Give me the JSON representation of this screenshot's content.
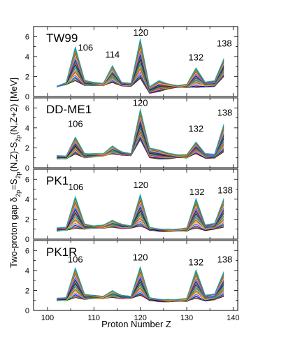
{
  "chart_data": {
    "type": "line",
    "xlabel": "Proton Number Z",
    "ylabel": "Two-proton gap δ_2p=S_2p(N,Z)-S_2p(N,Z+2) [MeV]",
    "ylabel_parts": [
      "Two-proton gap δ",
      "2p",
      "=S",
      "2p",
      "(N,Z)-S",
      "2p",
      "(N,Z+2) [MeV]"
    ],
    "xlim": [
      97,
      141
    ],
    "ylim": [
      0,
      7
    ],
    "xticks": [
      100,
      110,
      120,
      130,
      140
    ],
    "xtick_labels": [
      "100",
      "110",
      "120",
      "130",
      "140"
    ],
    "yticks": [
      0,
      2,
      4,
      6
    ],
    "ytick_labels": [
      "0",
      "2",
      "4",
      "6"
    ],
    "x": [
      102,
      104,
      106,
      108,
      110,
      112,
      114,
      116,
      118,
      120,
      122,
      124,
      126,
      128,
      130,
      132,
      134,
      136,
      138
    ],
    "series_colors": [
      "#000000",
      "#e41a1c",
      "#008000",
      "#0000ff",
      "#00ced1",
      "#ff00ff",
      "#ffd700",
      "#808080",
      "#8b4513",
      "#ff8c00",
      "#228b22",
      "#4169e1",
      "#20b2aa"
    ],
    "panels": [
      {
        "label": "TW99",
        "annotations": [
          {
            "text": "106",
            "x": 108.2,
            "y": 4.6
          },
          {
            "text": "114",
            "x": 114.0,
            "y": 3.9
          },
          {
            "text": "120",
            "x": 120.1,
            "y": 6.1
          },
          {
            "text": "132",
            "x": 132.0,
            "y": 3.6
          },
          {
            "text": "138",
            "x": 138.1,
            "y": 5.0
          }
        ],
        "peak_range": [
          [
            1.0,
            1.0
          ],
          [
            1.2,
            1.4
          ],
          [
            1.6,
            5.0
          ],
          [
            1.1,
            1.6
          ],
          [
            1.1,
            1.4
          ],
          [
            1.1,
            1.3
          ],
          [
            1.4,
            3.1
          ],
          [
            1.1,
            1.4
          ],
          [
            1.0,
            1.3
          ],
          [
            1.8,
            5.8
          ],
          [
            0.3,
            1.0
          ],
          [
            0.5,
            1.6
          ],
          [
            0.8,
            1.3
          ],
          [
            0.9,
            1.1
          ],
          [
            0.9,
            1.2
          ],
          [
            0.9,
            2.9
          ],
          [
            1.0,
            1.4
          ],
          [
            1.0,
            1.6
          ],
          [
            2.0,
            3.8
          ]
        ]
      },
      {
        "label": "DD-ME1",
        "annotations": [
          {
            "text": "106",
            "x": 106.0,
            "y": 4.1
          },
          {
            "text": "120",
            "x": 120.0,
            "y": 6.2
          },
          {
            "text": "132",
            "x": 132.0,
            "y": 3.6
          },
          {
            "text": "138",
            "x": 138.2,
            "y": 5.2
          }
        ],
        "peak_range": [
          [
            0.9,
            1.2
          ],
          [
            0.9,
            1.2
          ],
          [
            1.4,
            3.1
          ],
          [
            1.0,
            1.4
          ],
          [
            1.1,
            1.4
          ],
          [
            1.2,
            1.4
          ],
          [
            1.4,
            2.2
          ],
          [
            1.3,
            1.6
          ],
          [
            1.2,
            1.4
          ],
          [
            2.8,
            5.9
          ],
          [
            1.0,
            2.0
          ],
          [
            0.9,
            1.8
          ],
          [
            0.9,
            1.5
          ],
          [
            1.0,
            1.3
          ],
          [
            1.0,
            1.3
          ],
          [
            1.4,
            2.6
          ],
          [
            1.0,
            1.4
          ],
          [
            1.0,
            1.4
          ],
          [
            1.6,
            4.4
          ]
        ]
      },
      {
        "label": "PK1",
        "annotations": [
          {
            "text": "106",
            "x": 106.1,
            "y": 4.9
          },
          {
            "text": "120",
            "x": 120.1,
            "y": 5.1
          },
          {
            "text": "132",
            "x": 132.2,
            "y": 4.4
          },
          {
            "text": "138",
            "x": 138.3,
            "y": 4.6
          }
        ],
        "peak_range": [
          [
            0.8,
            1.1
          ],
          [
            0.9,
            1.2
          ],
          [
            1.1,
            4.3
          ],
          [
            1.0,
            1.5
          ],
          [
            1.1,
            1.3
          ],
          [
            1.1,
            1.4
          ],
          [
            1.2,
            1.9
          ],
          [
            1.1,
            1.5
          ],
          [
            1.1,
            1.3
          ],
          [
            1.3,
            4.5
          ],
          [
            0.9,
            1.2
          ],
          [
            0.8,
            1.0
          ],
          [
            0.8,
            1.0
          ],
          [
            0.8,
            1.0
          ],
          [
            0.8,
            1.1
          ],
          [
            1.1,
            4.1
          ],
          [
            0.9,
            1.4
          ],
          [
            1.0,
            1.6
          ],
          [
            1.2,
            4.1
          ]
        ]
      },
      {
        "label": "PK1R",
        "annotations": [
          {
            "text": "106",
            "x": 106.0,
            "y": 4.8
          },
          {
            "text": "120",
            "x": 120.0,
            "y": 5.0
          },
          {
            "text": "132",
            "x": 132.0,
            "y": 4.5
          },
          {
            "text": "138",
            "x": 138.2,
            "y": 4.8
          }
        ],
        "peak_range": [
          [
            1.0,
            1.2
          ],
          [
            1.0,
            1.3
          ],
          [
            1.3,
            4.3
          ],
          [
            1.1,
            1.6
          ],
          [
            1.2,
            1.5
          ],
          [
            1.2,
            1.4
          ],
          [
            1.3,
            2.0
          ],
          [
            1.2,
            1.5
          ],
          [
            1.2,
            1.4
          ],
          [
            1.5,
            4.4
          ],
          [
            1.0,
            1.3
          ],
          [
            0.9,
            1.1
          ],
          [
            0.9,
            1.1
          ],
          [
            0.9,
            1.1
          ],
          [
            0.9,
            1.2
          ],
          [
            1.2,
            4.1
          ],
          [
            1.0,
            1.5
          ],
          [
            1.1,
            1.7
          ],
          [
            1.4,
            3.9
          ]
        ]
      }
    ],
    "lines_per_panel": 26
  }
}
